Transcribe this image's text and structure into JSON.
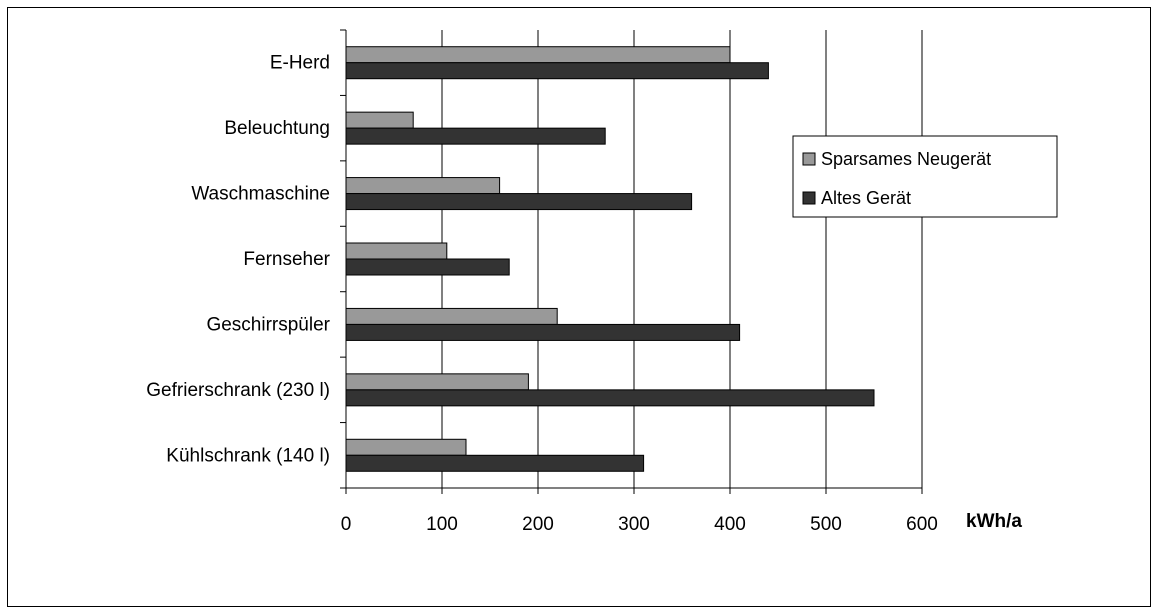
{
  "chart_data": {
    "type": "bar",
    "orientation": "horizontal",
    "categories": [
      "E-Herd",
      "Beleuchtung",
      "Waschmaschine",
      "Fernseher",
      "Geschirrspüler ",
      "Gefrierschrank (230 l)",
      "Kühlschrank (140 l)"
    ],
    "series": [
      {
        "name": "Sparsames Neugerät",
        "values": [
          400,
          70,
          160,
          105,
          220,
          190,
          125
        ],
        "color": "#999999"
      },
      {
        "name": "Altes Gerät",
        "values": [
          440,
          270,
          360,
          170,
          410,
          550,
          310
        ],
        "color": "#333333"
      }
    ],
    "xticks": [
      "0",
      "100",
      "200",
      "300",
      "400",
      "500",
      "600"
    ],
    "xlim": [
      0,
      600
    ],
    "xunit": "kWh/a",
    "grid": "vertical",
    "legend_position": "right"
  }
}
